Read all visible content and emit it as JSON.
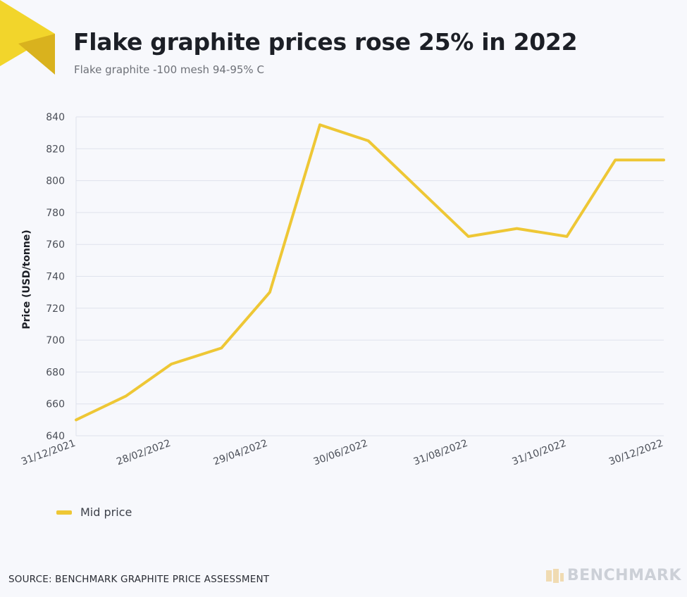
{
  "title": "Flake graphite prices rose 25% in 2022",
  "subtitle": "Flake graphite -100 mesh 94-95% C",
  "source": "SOURCE: BENCHMARK GRAPHITE PRICE ASSESSMENT",
  "brand": "BENCHMARK",
  "colors": {
    "line": "#eec735",
    "grid": "#dfe2ec",
    "logo_light": "#f2d52b",
    "logo_dark": "#d9b21e"
  },
  "chart_data": {
    "type": "line",
    "ylabel": "Price (USD/tonne)",
    "ylim": [
      640,
      840
    ],
    "yticks": [
      640,
      660,
      680,
      700,
      720,
      740,
      760,
      780,
      800,
      820,
      840
    ],
    "xtick_labels": [
      "31/12/2021",
      "28/02/2022",
      "29/04/2022",
      "30/06/2022",
      "31/08/2022",
      "31/10/2022",
      "30/12/2022"
    ],
    "grid": true,
    "legend_position": "bottom-left",
    "series": [
      {
        "name": "Mid price",
        "x": [
          "31/12/2021",
          "31/01/2022",
          "28/02/2022",
          "31/03/2022",
          "30/04/2022",
          "31/05/2022",
          "30/06/2022",
          "31/07/2022",
          "31/08/2022",
          "30/09/2022",
          "31/10/2022",
          "30/11/2022",
          "30/12/2022"
        ],
        "values": [
          650,
          665,
          685,
          695,
          730,
          835,
          825,
          795,
          765,
          770,
          765,
          813,
          813
        ]
      }
    ]
  }
}
